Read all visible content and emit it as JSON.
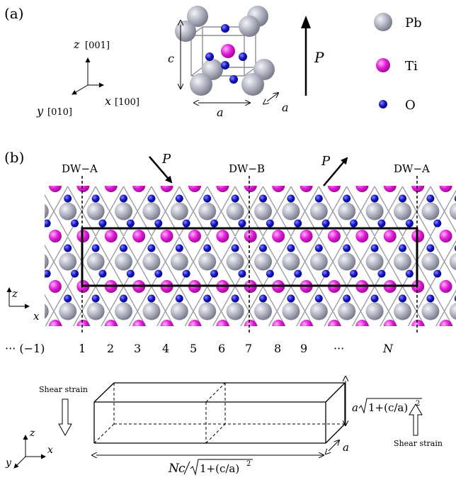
{
  "panel_a": {
    "label": "(a)",
    "axes": {
      "z": "z",
      "z_dir": "[001]",
      "y": "y",
      "y_dir": "[010]",
      "x": "x",
      "x_dir": "[100]"
    },
    "cell_labels": {
      "c": "c",
      "a_bottom": "a",
      "a_side": "a"
    },
    "polarization": "P",
    "legend": [
      {
        "label": "Pb",
        "color": "#a7a9b8"
      },
      {
        "label": "Ti",
        "color": "#e11ad7"
      },
      {
        "label": "O",
        "color": "#1414b4"
      }
    ]
  },
  "panel_b": {
    "label": "(b)",
    "walls": [
      "DW−A",
      "DW−B",
      "DW−A"
    ],
    "polarization_left": "P",
    "polarization_right": "P",
    "axes": {
      "z": "z",
      "x": "x"
    },
    "index_labels": [
      "··· (−1)",
      "1",
      "2",
      "3",
      "4",
      "5",
      "6",
      "7",
      "8",
      "9",
      "···",
      "N"
    ]
  },
  "panel_c": {
    "shear_left": "Shear strain",
    "shear_right": "Shear strain",
    "height_label": {
      "a": "a",
      "root": "1+(c/a)",
      "sup": "2"
    },
    "depth_label": "a",
    "length_label": {
      "N": "N",
      "c": "c",
      "root": "1+(c/a)",
      "sup": "2"
    },
    "axes": {
      "z": "z",
      "x": "x",
      "y": "y"
    }
  },
  "colors": {
    "pb": "#a7a9b8",
    "ti": "#e11ad7",
    "o": "#1414b4"
  }
}
